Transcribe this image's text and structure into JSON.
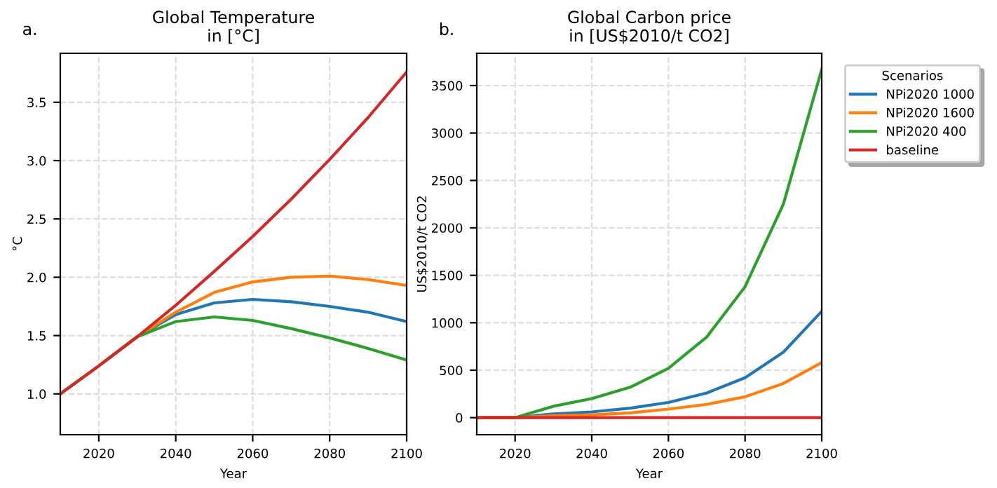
{
  "chart_data": [
    {
      "type": "line",
      "title": "Global Temperature\nin [°C]",
      "xlabel": "Year",
      "ylabel": "°C",
      "annotations": [
        "a."
      ],
      "x": [
        2010,
        2020,
        2030,
        2040,
        2050,
        2060,
        2070,
        2080,
        2090,
        2100
      ],
      "series": [
        {
          "color": "#1f77b4",
          "values": [
            1.0,
            1.24,
            1.49,
            1.68,
            1.78,
            1.81,
            1.79,
            1.75,
            1.7,
            1.62
          ]
        },
        {
          "color": "#ff7f0e",
          "values": [
            1.0,
            1.24,
            1.49,
            1.7,
            1.87,
            1.96,
            2.0,
            2.01,
            1.98,
            1.93
          ]
        },
        {
          "color": "#2ca02c",
          "values": [
            1.0,
            1.24,
            1.49,
            1.62,
            1.66,
            1.63,
            1.56,
            1.48,
            1.39,
            1.29
          ]
        },
        {
          "color": "#d62728",
          "values": [
            1.0,
            1.24,
            1.49,
            1.76,
            2.05,
            2.35,
            2.67,
            3.01,
            3.37,
            3.76
          ]
        }
      ],
      "xlim": [
        2010,
        2100
      ],
      "xticks": [
        2020,
        2040,
        2060,
        2080,
        2100
      ],
      "ylim": [
        0.65,
        3.92
      ],
      "yticks": [
        {
          "value": 1,
          "label": "1.0"
        },
        1.5,
        {
          "value": 2,
          "label": "2.0"
        },
        2.5,
        {
          "value": 3,
          "label": "3.0"
        },
        3.5
      ],
      "grid": true,
      "legend": false
    },
    {
      "type": "line",
      "title": "Global Carbon price\nin [US$2010/t CO2]",
      "xlabel": "Year",
      "ylabel": "US$2010/t CO2",
      "annotations": [
        "b."
      ],
      "legend_title": "Scenarios",
      "x": [
        2010,
        2020,
        2030,
        2040,
        2050,
        2060,
        2070,
        2080,
        2090,
        2100
      ],
      "series": [
        {
          "name": "NPi2020 1000",
          "color": "#1f77b4",
          "values": [
            0,
            0,
            40,
            60,
            100,
            160,
            260,
            420,
            690,
            1120
          ]
        },
        {
          "name": "NPi2020 1600",
          "color": "#ff7f0e",
          "values": [
            0,
            0,
            20,
            30,
            50,
            90,
            140,
            220,
            360,
            580
          ]
        },
        {
          "name": "NPi2020 400",
          "color": "#2ca02c",
          "values": [
            0,
            0,
            120,
            200,
            320,
            520,
            850,
            1380,
            2250,
            3670
          ]
        },
        {
          "name": "baseline",
          "color": "#d62728",
          "values": [
            0,
            0,
            0,
            0,
            0,
            0,
            0,
            0,
            0,
            0
          ]
        }
      ],
      "xlim": [
        2010,
        2100
      ],
      "xticks": [
        2020,
        2040,
        2060,
        2080,
        2100
      ],
      "ylim": [
        -180,
        3840
      ],
      "yticks": [
        0,
        500,
        1000,
        1500,
        2000,
        2500,
        3000,
        3500
      ],
      "grid": true,
      "legend": "top right"
    }
  ]
}
